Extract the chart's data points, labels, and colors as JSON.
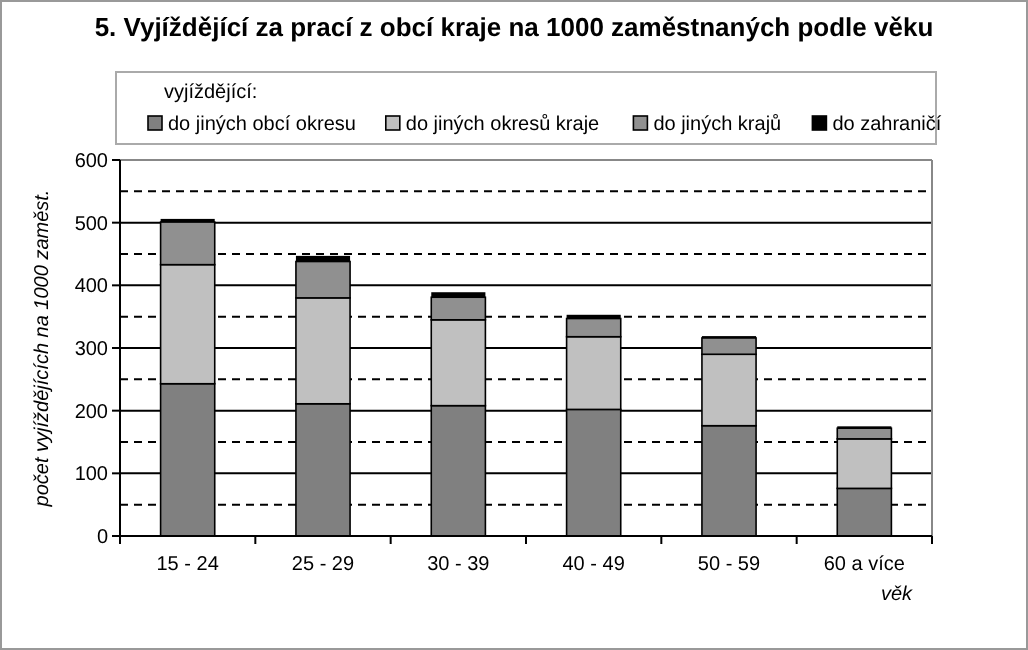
{
  "chart_data": {
    "type": "bar",
    "stacked": true,
    "title": "5. Vyjíždějící za prací z obcí kraje na 1000 zaměstnaných podle věku",
    "xlabel": "věk",
    "ylabel": "počet vyjíždějících na 1000 zaměst.",
    "legend_title": "vyjíždějící:",
    "legend": "top",
    "grid": true,
    "categories": [
      "15 - 24",
      "25 - 29",
      "30 - 39",
      "40 - 49",
      "50 - 59",
      "60 a více"
    ],
    "ylim": [
      0,
      600
    ],
    "yticks": [
      0,
      {
        "value": 50,
        "label": null
      },
      100,
      {
        "value": 150,
        "label": null
      },
      200,
      {
        "value": 250,
        "label": null
      },
      300,
      {
        "value": 350,
        "label": null
      },
      400,
      {
        "value": 450,
        "label": null
      },
      500,
      {
        "value": 550,
        "label": null
      },
      600
    ],
    "series": [
      {
        "name": "do jiných obcí okresu",
        "color": "#808080",
        "values": [
          243,
          211,
          208,
          202,
          176,
          76
        ]
      },
      {
        "name": "do jiných okresů kraje",
        "color": "#c0c0c0",
        "values": [
          190,
          169,
          137,
          116,
          114,
          79
        ]
      },
      {
        "name": "do jiných krajů",
        "color": "#909090",
        "values": [
          68,
          58,
          36,
          29,
          26,
          17
        ]
      },
      {
        "name": "do zahraničí",
        "color": "#000000",
        "values": [
          5,
          9,
          8,
          6,
          3,
          3
        ]
      }
    ]
  }
}
